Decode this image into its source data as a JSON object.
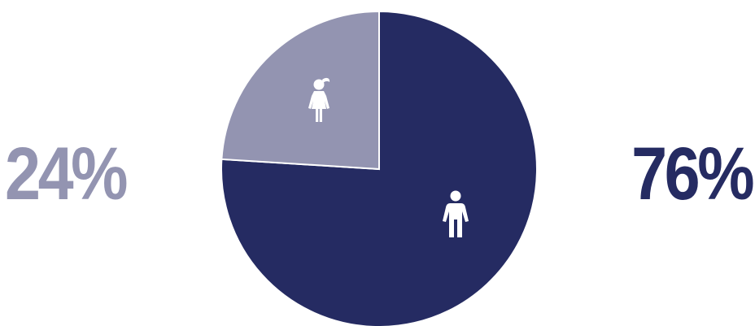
{
  "chart_data": {
    "type": "pie",
    "categories": [
      "female",
      "male"
    ],
    "values": [
      24,
      76
    ],
    "labels": [
      "24%",
      "76%"
    ],
    "start_angle_deg": 0,
    "direction": "clockwise",
    "legend": "none",
    "title": "",
    "xlabel": "",
    "ylabel": ""
  },
  "icons": [
    "female-person-icon",
    "male-person-icon"
  ],
  "colors": {
    "female": "#9394b1",
    "male": "#252b62",
    "slice_border": "#ffffff",
    "icon": "#ffffff"
  }
}
